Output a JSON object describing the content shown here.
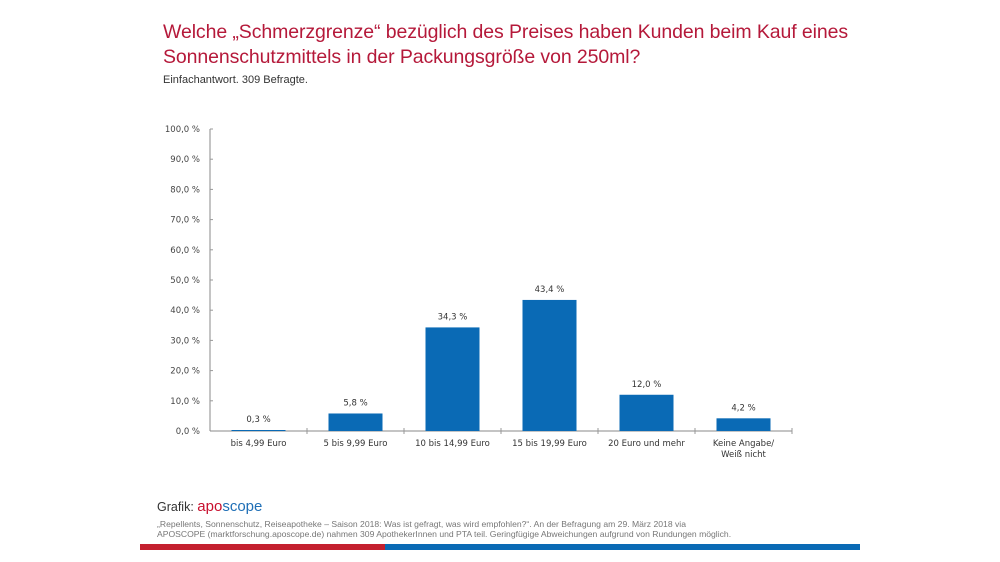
{
  "header": {
    "title": "Welche „Schmerzgrenze“ bezüglich des Preises haben Kunden beim Kauf eines Sonnenschutzmittels in der Packungsgröße von 250ml?",
    "subtitle": "Einfachantwort. 309 Befragte."
  },
  "chart_data": {
    "type": "bar",
    "title": "Welche „Schmerzgrenze“ bezüglich des Preises haben Kunden beim Kauf eines Sonnenschutzmittels in der Packungsgröße von 250ml?",
    "subtitle": "Einfachantwort. 309 Befragte.",
    "categories": [
      "bis 4,99 Euro",
      "5 bis 9,99 Euro",
      "10 bis 14,99 Euro",
      "15 bis 19,99 Euro",
      "20 Euro und mehr",
      "Keine Angabe/\nWeiß nicht"
    ],
    "values": [
      0.3,
      5.8,
      34.3,
      43.4,
      12.0,
      4.2
    ],
    "data_labels": [
      "0,3 %",
      "5,8 %",
      "34,3 %",
      "43,4 %",
      "12,0 %",
      "4,2 %"
    ],
    "xlabel": "",
    "ylabel": "",
    "ylim": [
      0,
      100
    ],
    "yticks": [
      0,
      10,
      20,
      30,
      40,
      50,
      60,
      70,
      80,
      90,
      100
    ],
    "ytick_labels": [
      "0,0 %",
      "10,0 %",
      "20,0 %",
      "30,0 %",
      "40,0 %",
      "50,0 %",
      "60,0 %",
      "70,0 %",
      "80,0 %",
      "90,0 %",
      "100,0 %"
    ],
    "grid": false,
    "legend": "none",
    "bar_color": "#0a6ab5"
  },
  "footer": {
    "credit_label": "Grafik:",
    "logo_part1": "apo",
    "logo_part2": "scope",
    "source_line1": "„Repellents, Sonnenschutz, Reiseapotheke – Saison 2018: Was ist gefragt, was wird empfohlen?“. An der Befragung am 29. März 2018 via",
    "source_line2": "APOSCOPE (marktforschung.aposcope.de) nahmen 309 ApothekerInnen und PTA teil. Geringfügige Abweichungen aufgrund von Rundungen möglich.",
    "colors": {
      "red": "#c4202f",
      "blue": "#0a6ab5"
    }
  }
}
